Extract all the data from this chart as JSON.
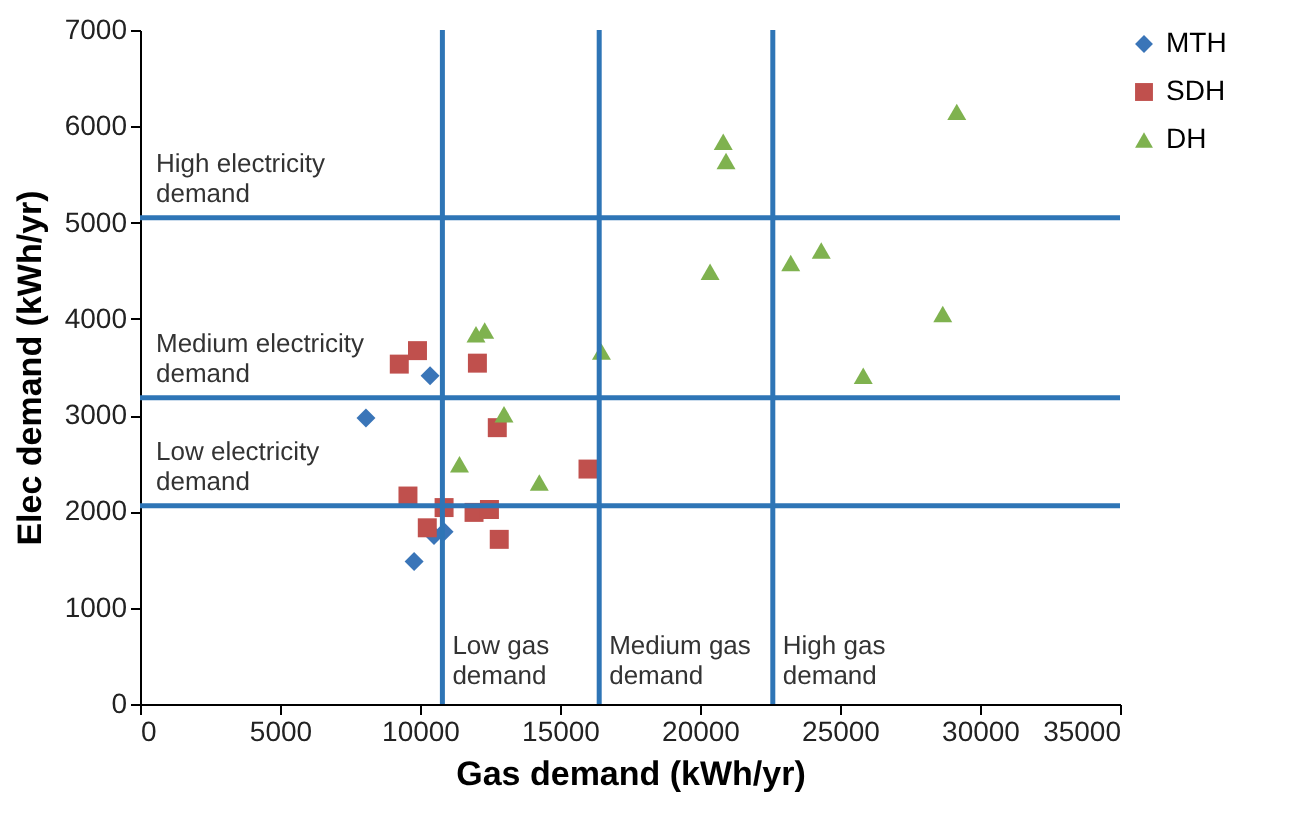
{
  "chart_data": {
    "type": "scatter",
    "xlabel": "Gas demand (kWh/yr)",
    "ylabel": "Elec demand (kWh/yr)",
    "xlim": [
      0,
      35000
    ],
    "xticks": [
      0,
      5000,
      10000,
      15000,
      20000,
      25000,
      30000,
      35000
    ],
    "ylim": [
      0,
      7000
    ],
    "yticks": [
      0,
      1000,
      2000,
      3000,
      4000,
      5000,
      6000,
      7000
    ],
    "grid": false,
    "legend": "right",
    "series": [
      {
        "name": "MTH",
        "color": "#3a75b8",
        "marker": "diamond",
        "x": [
          8070,
          10360,
          9790,
          10500,
          10860
        ],
        "values": [
          2970,
          3410,
          1480,
          1750,
          1790
        ]
      },
      {
        "name": "SDH",
        "color": "#c0504d",
        "marker": "square",
        "x": [
          9260,
          9910,
          12050,
          12760,
          16000,
          9570,
          10860,
          10260,
          11930,
          12480,
          12830
        ],
        "values": [
          3530,
          3670,
          3540,
          2870,
          2440,
          2160,
          2040,
          1830,
          1990,
          2020,
          1710
        ]
      },
      {
        "name": "DH",
        "color": "#7fb24f",
        "marker": "triangle",
        "x": [
          29170,
          20830,
          20930,
          20360,
          23240,
          24330,
          28670,
          25830,
          16480,
          12000,
          12310,
          13000,
          11410,
          14260
        ],
        "values": [
          6150,
          5840,
          5640,
          4490,
          4580,
          4710,
          4050,
          3410,
          3660,
          3840,
          3880,
          3010,
          2490,
          2300
        ]
      }
    ],
    "ref_lines": [
      {
        "axis": "y",
        "value": 5050,
        "label": "High electricity\ndemand",
        "color": "#2e75b6"
      },
      {
        "axis": "y",
        "value": 3180,
        "label": "Medium electricity\ndemand",
        "color": "#2e75b6"
      },
      {
        "axis": "y",
        "value": 2060,
        "label": "Low electricity\ndemand",
        "color": "#2e75b6"
      },
      {
        "axis": "x",
        "value": 10800,
        "label": "Low gas\ndemand",
        "color": "#2e75b6"
      },
      {
        "axis": "x",
        "value": 16400,
        "label": "Medium gas\ndemand",
        "color": "#2e75b6"
      },
      {
        "axis": "x",
        "value": 22600,
        "label": "High gas\ndemand",
        "color": "#2e75b6"
      }
    ]
  }
}
